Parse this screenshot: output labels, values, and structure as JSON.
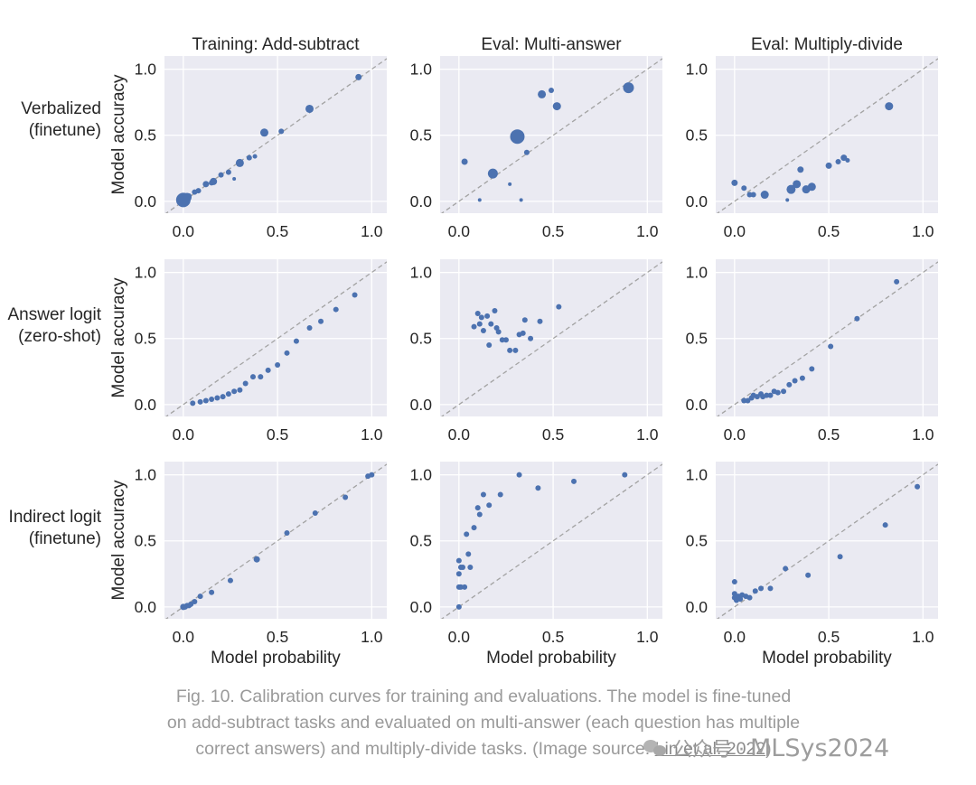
{
  "chart_data": {
    "type": "scatter",
    "column_titles": [
      "Training: Add-subtract",
      "Eval: Multi-answer",
      "Eval: Multiply-divide"
    ],
    "row_labels": [
      [
        "Verbalized",
        "(finetune)"
      ],
      [
        "Answer logit",
        "(zero-shot)"
      ],
      [
        "Indirect logit",
        "(finetune)"
      ]
    ],
    "ylabel": "Model accuracy",
    "xlabel": "Model probability",
    "xlim": [
      -0.1,
      1.08
    ],
    "ylim": [
      -0.09,
      1.1
    ],
    "xticks": [
      "0.0",
      "0.5",
      "1.0"
    ],
    "yticks": [
      "0.0",
      "0.5",
      "1.0"
    ],
    "diagonal": true,
    "color": "#4c72b0",
    "panel_bg": "#eaeaf2",
    "panels": [
      [
        {
          "points": [
            [
              0.0,
              0.01,
              8
            ],
            [
              0.01,
              0.02,
              6
            ],
            [
              0.02,
              0.03,
              5
            ],
            [
              0.03,
              0.04,
              3
            ],
            [
              0.06,
              0.07,
              3
            ],
            [
              0.08,
              0.08,
              3
            ],
            [
              0.12,
              0.13,
              3.5
            ],
            [
              0.15,
              0.14,
              3
            ],
            [
              0.16,
              0.15,
              4
            ],
            [
              0.2,
              0.2,
              3
            ],
            [
              0.24,
              0.22,
              3
            ],
            [
              0.27,
              0.17,
              2
            ],
            [
              0.3,
              0.29,
              4.5
            ],
            [
              0.35,
              0.33,
              3
            ],
            [
              0.38,
              0.34,
              2.5
            ],
            [
              0.43,
              0.52,
              4.5
            ],
            [
              0.52,
              0.53,
              3
            ],
            [
              0.67,
              0.7,
              4.5
            ],
            [
              0.93,
              0.94,
              3.5
            ]
          ]
        },
        {
          "points": [
            [
              0.03,
              0.3,
              3.5
            ],
            [
              0.11,
              0.01,
              2
            ],
            [
              0.18,
              0.21,
              5.5
            ],
            [
              0.27,
              0.13,
              2
            ],
            [
              0.31,
              0.49,
              8
            ],
            [
              0.33,
              0.01,
              2
            ],
            [
              0.36,
              0.37,
              3
            ],
            [
              0.44,
              0.81,
              4.5
            ],
            [
              0.49,
              0.84,
              3
            ],
            [
              0.52,
              0.72,
              4.5
            ],
            [
              0.9,
              0.86,
              6
            ]
          ]
        },
        {
          "points": [
            [
              0.0,
              0.14,
              3.5
            ],
            [
              0.05,
              0.1,
              3
            ],
            [
              0.08,
              0.05,
              3
            ],
            [
              0.1,
              0.05,
              3
            ],
            [
              0.16,
              0.05,
              4.5
            ],
            [
              0.28,
              0.01,
              2
            ],
            [
              0.3,
              0.09,
              5
            ],
            [
              0.33,
              0.13,
              4.5
            ],
            [
              0.35,
              0.24,
              3.5
            ],
            [
              0.38,
              0.09,
              4.5
            ],
            [
              0.41,
              0.11,
              4.5
            ],
            [
              0.5,
              0.27,
              3.5
            ],
            [
              0.55,
              0.3,
              3
            ],
            [
              0.58,
              0.33,
              3.5
            ],
            [
              0.6,
              0.31,
              2.5
            ],
            [
              0.82,
              0.72,
              4.5
            ]
          ]
        }
      ],
      [
        {
          "points": [
            [
              0.05,
              0.01,
              3
            ],
            [
              0.09,
              0.02,
              3
            ],
            [
              0.12,
              0.03,
              3
            ],
            [
              0.15,
              0.04,
              3
            ],
            [
              0.18,
              0.05,
              3
            ],
            [
              0.21,
              0.06,
              3
            ],
            [
              0.24,
              0.08,
              3
            ],
            [
              0.27,
              0.1,
              3
            ],
            [
              0.3,
              0.11,
              3
            ],
            [
              0.33,
              0.16,
              3
            ],
            [
              0.37,
              0.21,
              3
            ],
            [
              0.41,
              0.21,
              3
            ],
            [
              0.45,
              0.26,
              3
            ],
            [
              0.5,
              0.3,
              3
            ],
            [
              0.55,
              0.39,
              3
            ],
            [
              0.6,
              0.48,
              3
            ],
            [
              0.67,
              0.58,
              3
            ],
            [
              0.73,
              0.63,
              3
            ],
            [
              0.81,
              0.72,
              3
            ],
            [
              0.91,
              0.83,
              3
            ]
          ]
        },
        {
          "points": [
            [
              0.08,
              0.59,
              3
            ],
            [
              0.1,
              0.69,
              3
            ],
            [
              0.11,
              0.61,
              3
            ],
            [
              0.12,
              0.66,
              3
            ],
            [
              0.13,
              0.56,
              3
            ],
            [
              0.15,
              0.67,
              3
            ],
            [
              0.16,
              0.45,
              3
            ],
            [
              0.17,
              0.61,
              3
            ],
            [
              0.19,
              0.71,
              3
            ],
            [
              0.2,
              0.58,
              3
            ],
            [
              0.21,
              0.55,
              3
            ],
            [
              0.23,
              0.49,
              3
            ],
            [
              0.25,
              0.49,
              3
            ],
            [
              0.27,
              0.41,
              3
            ],
            [
              0.3,
              0.41,
              3
            ],
            [
              0.32,
              0.53,
              3
            ],
            [
              0.34,
              0.54,
              3
            ],
            [
              0.35,
              0.64,
              3
            ],
            [
              0.38,
              0.5,
              3
            ],
            [
              0.43,
              0.63,
              3
            ],
            [
              0.53,
              0.74,
              3
            ]
          ]
        },
        {
          "points": [
            [
              0.05,
              0.03,
              3
            ],
            [
              0.07,
              0.03,
              3
            ],
            [
              0.09,
              0.05,
              3
            ],
            [
              0.1,
              0.07,
              3
            ],
            [
              0.12,
              0.06,
              3
            ],
            [
              0.14,
              0.08,
              3
            ],
            [
              0.15,
              0.06,
              3
            ],
            [
              0.17,
              0.07,
              3
            ],
            [
              0.19,
              0.07,
              3
            ],
            [
              0.21,
              0.1,
              3
            ],
            [
              0.23,
              0.09,
              3
            ],
            [
              0.26,
              0.1,
              3
            ],
            [
              0.29,
              0.15,
              3
            ],
            [
              0.32,
              0.18,
              3
            ],
            [
              0.36,
              0.2,
              3
            ],
            [
              0.41,
              0.27,
              3
            ],
            [
              0.51,
              0.44,
              3
            ],
            [
              0.65,
              0.65,
              3
            ],
            [
              0.86,
              0.93,
              3
            ]
          ]
        }
      ],
      [
        {
          "points": [
            [
              0.0,
              0.0,
              3.5
            ],
            [
              0.01,
              0.0,
              3
            ],
            [
              0.02,
              0.01,
              3
            ],
            [
              0.03,
              0.01,
              3
            ],
            [
              0.04,
              0.02,
              3
            ],
            [
              0.06,
              0.04,
              3
            ],
            [
              0.09,
              0.08,
              3
            ],
            [
              0.15,
              0.11,
              3
            ],
            [
              0.25,
              0.2,
              3
            ],
            [
              0.39,
              0.36,
              3.5
            ],
            [
              0.55,
              0.56,
              3
            ],
            [
              0.7,
              0.71,
              3
            ],
            [
              0.86,
              0.83,
              3
            ],
            [
              0.98,
              0.99,
              3
            ],
            [
              1.0,
              1.0,
              3
            ]
          ]
        },
        {
          "points": [
            [
              0.0,
              0.0,
              3
            ],
            [
              0.0,
              0.15,
              3
            ],
            [
              0.01,
              0.3,
              3
            ],
            [
              0.0,
              0.35,
              3
            ],
            [
              0.0,
              0.25,
              3
            ],
            [
              0.01,
              0.15,
              3
            ],
            [
              0.02,
              0.3,
              3
            ],
            [
              0.03,
              0.15,
              3
            ],
            [
              0.04,
              0.55,
              3
            ],
            [
              0.05,
              0.4,
              3
            ],
            [
              0.06,
              0.3,
              3
            ],
            [
              0.08,
              0.6,
              3
            ],
            [
              0.1,
              0.75,
              3
            ],
            [
              0.11,
              0.7,
              3
            ],
            [
              0.13,
              0.85,
              3
            ],
            [
              0.16,
              0.77,
              3
            ],
            [
              0.22,
              0.85,
              3
            ],
            [
              0.32,
              1.0,
              3
            ],
            [
              0.42,
              0.9,
              3
            ],
            [
              0.61,
              0.95,
              3
            ],
            [
              0.88,
              1.0,
              3
            ]
          ]
        },
        {
          "points": [
            [
              0.0,
              0.19,
              3
            ],
            [
              0.0,
              0.1,
              3
            ],
            [
              0.0,
              0.07,
              3
            ],
            [
              0.01,
              0.05,
              3
            ],
            [
              0.02,
              0.08,
              3
            ],
            [
              0.03,
              0.06,
              3
            ],
            [
              0.04,
              0.09,
              3
            ],
            [
              0.06,
              0.08,
              3
            ],
            [
              0.08,
              0.07,
              3
            ],
            [
              0.11,
              0.12,
              3
            ],
            [
              0.14,
              0.14,
              3
            ],
            [
              0.19,
              0.14,
              3
            ],
            [
              0.27,
              0.29,
              3
            ],
            [
              0.39,
              0.24,
              3
            ],
            [
              0.56,
              0.38,
              3
            ],
            [
              0.8,
              0.62,
              3
            ],
            [
              0.97,
              0.91,
              3
            ]
          ]
        }
      ]
    ]
  },
  "caption": {
    "line1": "Fig. 10. Calibration curves for training and evaluations. The model is fine-tuned",
    "line2": "on add-subtract tasks and evaluated on multi-answer (each question has multiple",
    "line3_prefix": "correct answers) and multiply-divide tasks. (Image source: ",
    "line3_cite": "Lin et al. 2022",
    "line3_suffix": ")"
  },
  "watermark": {
    "icon": "wechat-icon",
    "text_cn": "公众号 ·",
    "text_name": "MLSys2024"
  }
}
